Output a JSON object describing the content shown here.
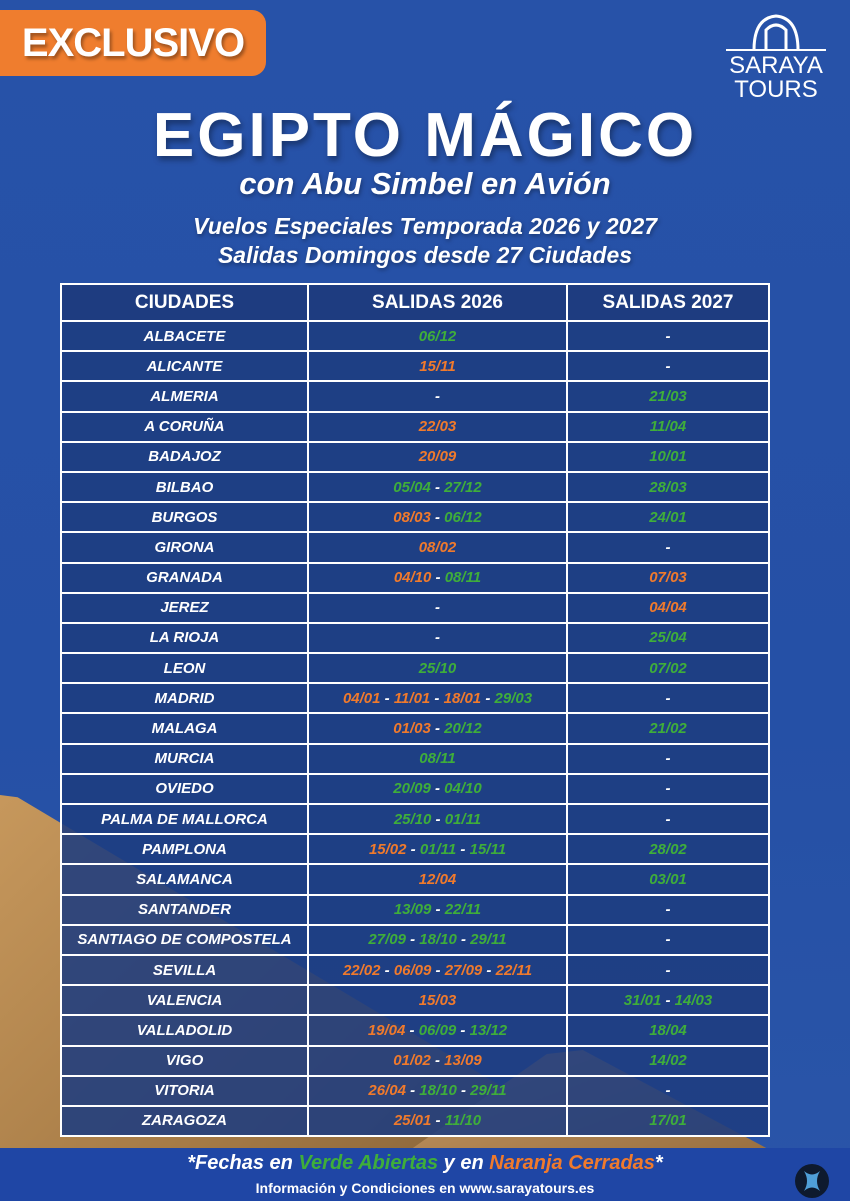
{
  "badge": "EXCLUSIVO",
  "logo": {
    "line1": "SARAYA",
    "line2": "TOURS"
  },
  "title": "EGIPTO MÁGICO",
  "subtitle": "con Abu Simbel en Avión",
  "lines": [
    "Vuelos Especiales Temporada 2026 y 2027",
    "Salidas Domingos desde 27 Ciudades"
  ],
  "colors": {
    "open": "#3fae3a",
    "closed": "#f07a2c",
    "accent": "#ef7d2e",
    "background": "#2752a8"
  },
  "table": {
    "headers": [
      "CIUDADES",
      "SALIDAS 2026",
      "SALIDAS 2027"
    ],
    "rows": [
      {
        "city": "ALBACETE",
        "s2026": [
          [
            "06/12",
            "open"
          ]
        ],
        "s2027": "-"
      },
      {
        "city": "ALICANTE",
        "s2026": [
          [
            "15/11",
            "closed"
          ]
        ],
        "s2027": "-"
      },
      {
        "city": "ALMERIA",
        "s2026": "-",
        "s2027": [
          [
            "21/03",
            "open"
          ]
        ]
      },
      {
        "city": "A CORUÑA",
        "s2026": [
          [
            "22/03",
            "closed"
          ]
        ],
        "s2027": [
          [
            "11/04",
            "open"
          ]
        ]
      },
      {
        "city": "BADAJOZ",
        "s2026": [
          [
            "20/09",
            "closed"
          ]
        ],
        "s2027": [
          [
            "10/01",
            "open"
          ]
        ]
      },
      {
        "city": "BILBAO",
        "s2026": [
          [
            "05/04",
            "open"
          ],
          [
            "27/12",
            "open"
          ]
        ],
        "s2027": [
          [
            "28/03",
            "open"
          ]
        ]
      },
      {
        "city": "BURGOS",
        "s2026": [
          [
            "08/03",
            "closed"
          ],
          [
            "06/12",
            "open"
          ]
        ],
        "s2027": [
          [
            "24/01",
            "open"
          ]
        ]
      },
      {
        "city": "GIRONA",
        "s2026": [
          [
            "08/02",
            "closed"
          ]
        ],
        "s2027": "-"
      },
      {
        "city": "GRANADA",
        "s2026": [
          [
            "04/10",
            "closed"
          ],
          [
            "08/11",
            "open"
          ]
        ],
        "s2027": [
          [
            "07/03",
            "closed"
          ]
        ]
      },
      {
        "city": "JEREZ",
        "s2026": "-",
        "s2027": [
          [
            "04/04",
            "closed"
          ]
        ]
      },
      {
        "city": "LA RIOJA",
        "s2026": "-",
        "s2027": [
          [
            "25/04",
            "open"
          ]
        ]
      },
      {
        "city": "LEON",
        "s2026": [
          [
            "25/10",
            "open"
          ]
        ],
        "s2027": [
          [
            "07/02",
            "open"
          ]
        ]
      },
      {
        "city": "MADRID",
        "s2026": [
          [
            "04/01",
            "closed"
          ],
          [
            "11/01",
            "closed"
          ],
          [
            "18/01",
            "closed"
          ],
          [
            "29/03",
            "open"
          ]
        ],
        "s2027": "-"
      },
      {
        "city": "MALAGA",
        "s2026": [
          [
            "01/03",
            "closed"
          ],
          [
            "20/12",
            "open"
          ]
        ],
        "s2027": [
          [
            "21/02",
            "open"
          ]
        ]
      },
      {
        "city": "MURCIA",
        "s2026": [
          [
            "08/11",
            "open"
          ]
        ],
        "s2027": "-"
      },
      {
        "city": "OVIEDO",
        "s2026": [
          [
            "20/09",
            "open"
          ],
          [
            "04/10",
            "open"
          ]
        ],
        "s2027": "-"
      },
      {
        "city": "PALMA DE  MALLORCA",
        "s2026": [
          [
            "25/10",
            "open"
          ],
          [
            "01/11",
            "open"
          ]
        ],
        "s2027": "-"
      },
      {
        "city": "PAMPLONA",
        "s2026": [
          [
            "15/02",
            "closed"
          ],
          [
            "01/11",
            "open"
          ],
          [
            "15/11",
            "open"
          ]
        ],
        "s2027": [
          [
            "28/02",
            "open"
          ]
        ]
      },
      {
        "city": "SALAMANCA",
        "s2026": [
          [
            "12/04",
            "closed"
          ]
        ],
        "s2027": [
          [
            "03/01",
            "open"
          ]
        ]
      },
      {
        "city": "SANTANDER",
        "s2026": [
          [
            "13/09",
            "open"
          ],
          [
            "22/11",
            "open"
          ]
        ],
        "s2027": "-"
      },
      {
        "city": "SANTIAGO DE COMPOSTELA",
        "s2026": [
          [
            "27/09",
            "open"
          ],
          [
            "18/10",
            "open"
          ],
          [
            "29/11",
            "open"
          ]
        ],
        "s2027": "-"
      },
      {
        "city": "SEVILLA",
        "s2026": [
          [
            "22/02",
            "closed"
          ],
          [
            "06/09",
            "closed"
          ],
          [
            "27/09",
            "closed"
          ],
          [
            "22/11",
            "closed"
          ]
        ],
        "s2027": "-"
      },
      {
        "city": "VALENCIA",
        "s2026": [
          [
            "15/03",
            "closed"
          ]
        ],
        "s2027": [
          [
            "31/01",
            "open"
          ],
          [
            "14/03",
            "open"
          ]
        ]
      },
      {
        "city": "VALLADOLID",
        "s2026": [
          [
            "19/04",
            "closed"
          ],
          [
            "06/09",
            "open"
          ],
          [
            "13/12",
            "open"
          ]
        ],
        "s2027": [
          [
            "18/04",
            "open"
          ]
        ]
      },
      {
        "city": "VIGO",
        "s2026": [
          [
            "01/02",
            "closed"
          ],
          [
            "13/09",
            "closed"
          ]
        ],
        "s2027": [
          [
            "14/02",
            "open"
          ]
        ]
      },
      {
        "city": "VITORIA",
        "s2026": [
          [
            "26/04",
            "closed"
          ],
          [
            "18/10",
            "open"
          ],
          [
            "29/11",
            "open"
          ]
        ],
        "s2027": "-"
      },
      {
        "city": "ZARAGOZA",
        "s2026": [
          [
            "25/01",
            "closed"
          ],
          [
            "11/10",
            "open"
          ]
        ],
        "s2027": [
          [
            "17/01",
            "open"
          ]
        ]
      }
    ]
  },
  "footer": {
    "legend": {
      "prefix": "*Fechas en ",
      "open": "Verde Abiertas",
      "middle": " y en ",
      "closed": "Naranja Cerradas",
      "suffix": "*"
    },
    "info": "Información y Condiciones en www.sarayatours.es"
  }
}
